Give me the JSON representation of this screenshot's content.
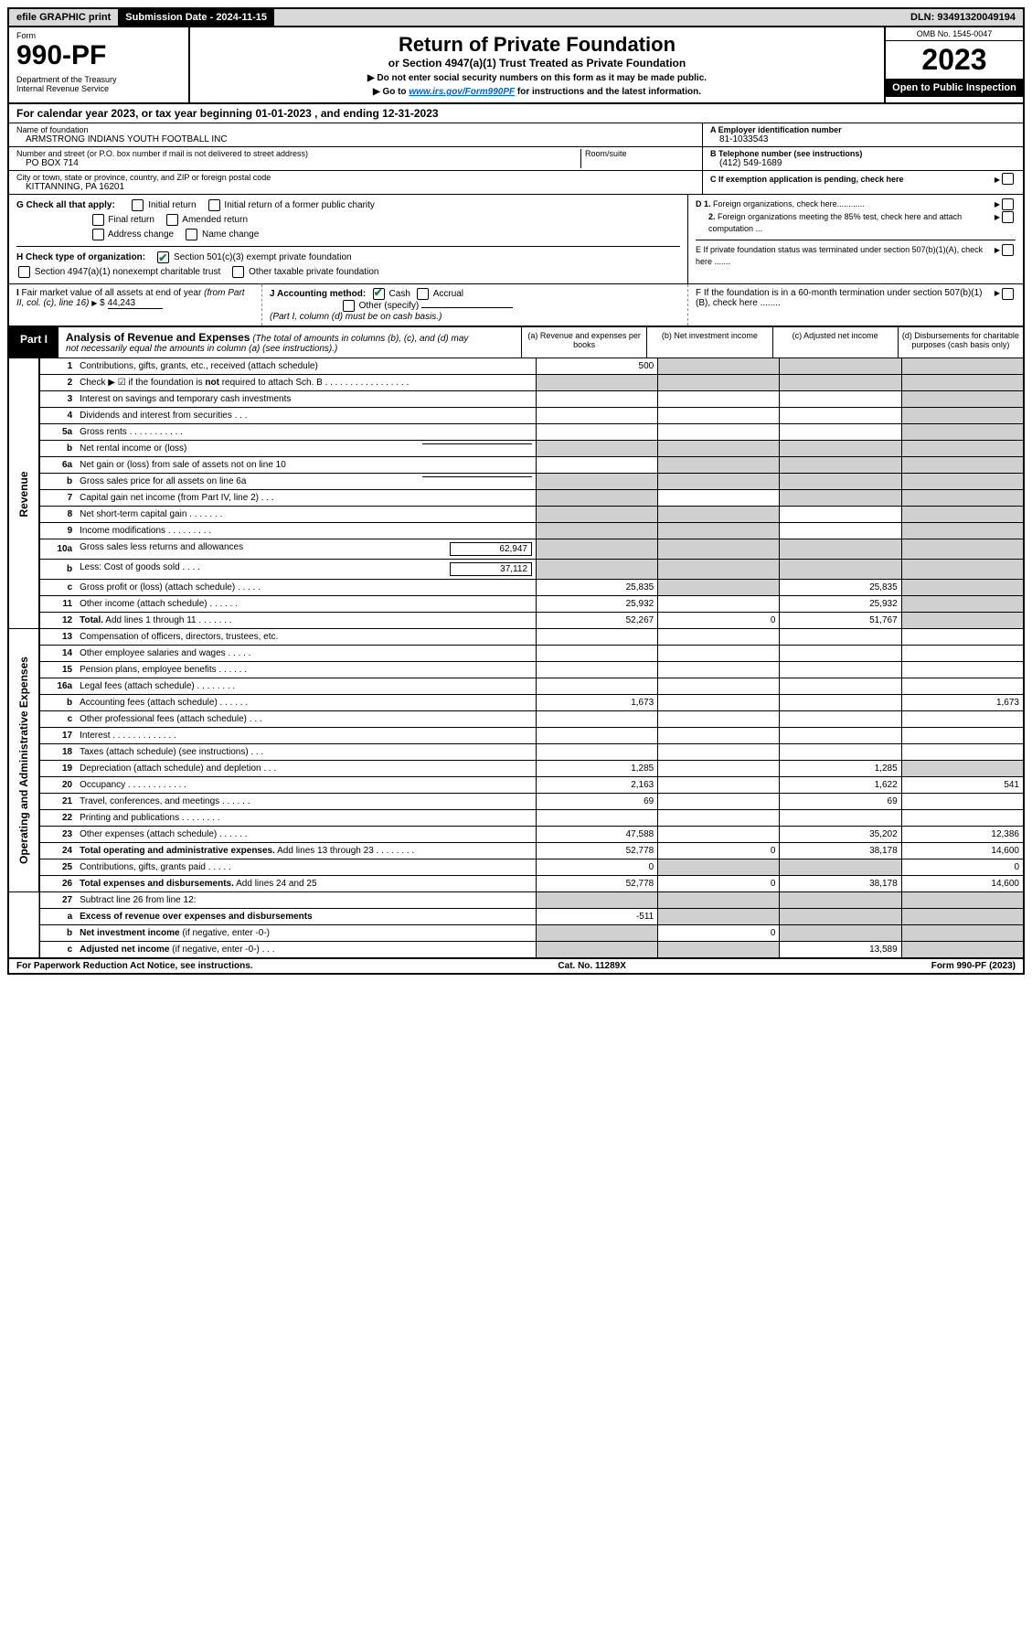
{
  "topbar": {
    "efile": "efile GRAPHIC print",
    "subdate_label": "Submission Date - 2024-11-15",
    "dln": "DLN: 93491320049194"
  },
  "header": {
    "form_word": "Form",
    "form_num": "990-PF",
    "dept": "Department of the Treasury\nInternal Revenue Service",
    "title": "Return of Private Foundation",
    "subtitle": "or Section 4947(a)(1) Trust Treated as Private Foundation",
    "instr1": "▶ Do not enter social security numbers on this form as it may be made public.",
    "instr2_pre": "▶ Go to ",
    "instr2_link": "www.irs.gov/Form990PF",
    "instr2_post": " for instructions and the latest information.",
    "omb": "OMB No. 1545-0047",
    "year": "2023",
    "open": "Open to Public Inspection"
  },
  "calyear": "For calendar year 2023, or tax year beginning 01-01-2023            , and ending 12-31-2023",
  "info": {
    "name_label": "Name of foundation",
    "name": "ARMSTRONG INDIANS YOUTH FOOTBALL INC",
    "addr_label": "Number and street (or P.O. box number if mail is not delivered to street address)",
    "addr": "PO BOX 714",
    "room_label": "Room/suite",
    "city_label": "City or town, state or province, country, and ZIP or foreign postal code",
    "city": "KITTANNING, PA  16201",
    "ein_label": "A Employer identification number",
    "ein": "81-1033543",
    "phone_label": "B Telephone number (see instructions)",
    "phone": "(412) 549-1689",
    "c_label": "C If exemption application is pending, check here"
  },
  "checks": {
    "g_label": "G Check all that apply:",
    "g_opts": [
      "Initial return",
      "Initial return of a former public charity",
      "Final return",
      "Amended return",
      "Address change",
      "Name change"
    ],
    "h_label": "H Check type of organization:",
    "h1": "Section 501(c)(3) exempt private foundation",
    "h2": "Section 4947(a)(1) nonexempt charitable trust",
    "h3": "Other taxable private foundation",
    "d1": "D 1. Foreign organizations, check here............",
    "d2": "2. Foreign organizations meeting the 85% test, check here and attach computation ...",
    "e": "E  If private foundation status was terminated under section 507(b)(1)(A), check here .......",
    "i_label": "I Fair market value of all assets at end of year (from Part II, col. (c), line 16) ▶ $",
    "i_val": "44,243",
    "j_label": "J Accounting method:",
    "j_cash": "Cash",
    "j_accrual": "Accrual",
    "j_other": "Other (specify)",
    "j_note": "(Part I, column (d) must be on cash basis.)",
    "f": "F  If the foundation is in a 60-month termination under section 507(b)(1)(B), check here ........"
  },
  "part1": {
    "tag": "Part I",
    "title": "Analysis of Revenue and Expenses",
    "note": "(The total of amounts in columns (b), (c), and (d) may not necessarily equal the amounts in column (a) (see instructions).)",
    "col_a": "(a) Revenue and expenses per books",
    "col_b": "(b) Net investment income",
    "col_c": "(c) Adjusted net income",
    "col_d": "(d) Disbursements for charitable purposes (cash basis only)"
  },
  "side": {
    "rev": "Revenue",
    "exp": "Operating and Administrative Expenses"
  },
  "rows": [
    {
      "n": "1",
      "desc": "Contributions, gifts, grants, etc., received (attach schedule)",
      "a": "500",
      "b": "",
      "c": "",
      "d": "",
      "b_sh": 1,
      "c_sh": 1,
      "d_sh": 1
    },
    {
      "n": "2",
      "desc": "Check ▶ ☑ if the foundation is <b>not</b> required to attach Sch. B   . . . . . . . . . . . . . . . . .",
      "a": "",
      "b": "",
      "c": "",
      "d": "",
      "a_sh": 1,
      "b_sh": 1,
      "c_sh": 1,
      "d_sh": 1,
      "html": 1
    },
    {
      "n": "3",
      "desc": "Interest on savings and temporary cash investments",
      "a": "",
      "b": "",
      "c": "",
      "d": "",
      "d_sh": 1
    },
    {
      "n": "4",
      "desc": "Dividends and interest from securities   .  .  .",
      "a": "",
      "b": "",
      "c": "",
      "d": "",
      "d_sh": 1
    },
    {
      "n": "5a",
      "desc": "Gross rents   .  .  .  .  .  .  .  .  .  .  .",
      "a": "",
      "b": "",
      "c": "",
      "d": "",
      "d_sh": 1
    },
    {
      "n": "b",
      "desc": "Net rental income or (loss)  ",
      "a": "",
      "b": "",
      "c": "",
      "d": "",
      "a_sh": 1,
      "b_sh": 1,
      "c_sh": 1,
      "d_sh": 1,
      "sub": 1
    },
    {
      "n": "6a",
      "desc": "Net gain or (loss) from sale of assets not on line 10",
      "a": "",
      "b": "",
      "c": "",
      "d": "",
      "b_sh": 1,
      "c_sh": 1,
      "d_sh": 1
    },
    {
      "n": "b",
      "desc": "Gross sales price for all assets on line 6a",
      "a": "",
      "b": "",
      "c": "",
      "d": "",
      "a_sh": 1,
      "b_sh": 1,
      "c_sh": 1,
      "d_sh": 1,
      "sub": 1
    },
    {
      "n": "7",
      "desc": "Capital gain net income (from Part IV, line 2)   .  .  .",
      "a": "",
      "b": "",
      "c": "",
      "d": "",
      "a_sh": 1,
      "c_sh": 1,
      "d_sh": 1
    },
    {
      "n": "8",
      "desc": "Net short-term capital gain  .  .  .  .  .  .  .",
      "a": "",
      "b": "",
      "c": "",
      "d": "",
      "a_sh": 1,
      "b_sh": 1,
      "d_sh": 1
    },
    {
      "n": "9",
      "desc": "Income modifications  .  .  .  .  .  .  .  .  .",
      "a": "",
      "b": "",
      "c": "",
      "d": "",
      "a_sh": 1,
      "b_sh": 1,
      "d_sh": 1
    },
    {
      "n": "10a",
      "desc": "Gross sales less returns and allowances",
      "a": "",
      "b": "",
      "c": "",
      "d": "",
      "a_sh": 1,
      "b_sh": 1,
      "c_sh": 1,
      "d_sh": 1,
      "subval": "62,947"
    },
    {
      "n": "b",
      "desc": "Less: Cost of goods sold    .  .  .  .",
      "a": "",
      "b": "",
      "c": "",
      "d": "",
      "a_sh": 1,
      "b_sh": 1,
      "c_sh": 1,
      "d_sh": 1,
      "subval": "37,112"
    },
    {
      "n": "c",
      "desc": "Gross profit or (loss) (attach schedule)   .  .  .  .  .",
      "a": "25,835",
      "b": "",
      "c": "25,835",
      "d": "",
      "b_sh": 1,
      "d_sh": 1
    },
    {
      "n": "11",
      "desc": "Other income (attach schedule)   .  .  .  .  .  .",
      "a": "25,932",
      "b": "",
      "c": "25,932",
      "d": "",
      "d_sh": 1
    },
    {
      "n": "12",
      "desc": "<b>Total.</b> Add lines 1 through 11   .  .  .  .  .  .  .",
      "a": "52,267",
      "b": "0",
      "c": "51,767",
      "d": "",
      "d_sh": 1,
      "bold": 1,
      "html": 1
    },
    {
      "n": "13",
      "desc": "Compensation of officers, directors, trustees, etc.",
      "a": "",
      "b": "",
      "c": "",
      "d": "",
      "sec": "exp"
    },
    {
      "n": "14",
      "desc": "Other employee salaries and wages   .  .  .  .  .",
      "a": "",
      "b": "",
      "c": "",
      "d": ""
    },
    {
      "n": "15",
      "desc": "Pension plans, employee benefits  .  .  .  .  .  .",
      "a": "",
      "b": "",
      "c": "",
      "d": ""
    },
    {
      "n": "16a",
      "desc": "Legal fees (attach schedule)  .  .  .  .  .  .  .  .",
      "a": "",
      "b": "",
      "c": "",
      "d": ""
    },
    {
      "n": "b",
      "desc": "Accounting fees (attach schedule)  .  .  .  .  .  .",
      "a": "1,673",
      "b": "",
      "c": "",
      "d": "1,673"
    },
    {
      "n": "c",
      "desc": "Other professional fees (attach schedule)   .  .  .",
      "a": "",
      "b": "",
      "c": "",
      "d": ""
    },
    {
      "n": "17",
      "desc": "Interest  .  .  .  .  .  .  .  .  .  .  .  .  .",
      "a": "",
      "b": "",
      "c": "",
      "d": ""
    },
    {
      "n": "18",
      "desc": "Taxes (attach schedule) (see instructions)    .  .  .",
      "a": "",
      "b": "",
      "c": "",
      "d": ""
    },
    {
      "n": "19",
      "desc": "Depreciation (attach schedule) and depletion   .  .  .",
      "a": "1,285",
      "b": "",
      "c": "1,285",
      "d": "",
      "d_sh": 1
    },
    {
      "n": "20",
      "desc": "Occupancy  .  .  .  .  .  .  .  .  .  .  .  .",
      "a": "2,163",
      "b": "",
      "c": "1,622",
      "d": "541"
    },
    {
      "n": "21",
      "desc": "Travel, conferences, and meetings  .  .  .  .  .  .",
      "a": "69",
      "b": "",
      "c": "69",
      "d": ""
    },
    {
      "n": "22",
      "desc": "Printing and publications  .  .  .  .  .  .  .  .",
      "a": "",
      "b": "",
      "c": "",
      "d": ""
    },
    {
      "n": "23",
      "desc": "Other expenses (attach schedule)  .  .  .  .  .  .",
      "a": "47,588",
      "b": "",
      "c": "35,202",
      "d": "12,386"
    },
    {
      "n": "24",
      "desc": "<b>Total operating and administrative expenses.</b> Add lines 13 through 23   .  .  .  .  .  .  .  .",
      "a": "52,778",
      "b": "0",
      "c": "38,178",
      "d": "14,600",
      "bold": 1,
      "html": 1
    },
    {
      "n": "25",
      "desc": "Contributions, gifts, grants paid    .  .  .  .  .",
      "a": "0",
      "b": "",
      "c": "",
      "d": "0",
      "b_sh": 1,
      "c_sh": 1
    },
    {
      "n": "26",
      "desc": "<b>Total expenses and disbursements.</b> Add lines 24 and 25",
      "a": "52,778",
      "b": "0",
      "c": "38,178",
      "d": "14,600",
      "bold": 1,
      "html": 1
    },
    {
      "n": "27",
      "desc": "Subtract line 26 from line 12:",
      "a": "",
      "b": "",
      "c": "",
      "d": "",
      "a_sh": 1,
      "b_sh": 1,
      "c_sh": 1,
      "d_sh": 1,
      "sec": "none"
    },
    {
      "n": "a",
      "desc": "<b>Excess of revenue over expenses and disbursements</b>",
      "a": "-511",
      "b": "",
      "c": "",
      "d": "",
      "b_sh": 1,
      "c_sh": 1,
      "d_sh": 1,
      "html": 1
    },
    {
      "n": "b",
      "desc": "<b>Net investment income</b> (if negative, enter -0-)",
      "a": "",
      "b": "0",
      "c": "",
      "d": "",
      "a_sh": 1,
      "c_sh": 1,
      "d_sh": 1,
      "html": 1
    },
    {
      "n": "c",
      "desc": "<b>Adjusted net income</b> (if negative, enter -0-)   .  .  .",
      "a": "",
      "b": "",
      "c": "13,589",
      "d": "",
      "a_sh": 1,
      "b_sh": 1,
      "d_sh": 1,
      "html": 1
    }
  ],
  "footer": {
    "left": "For Paperwork Reduction Act Notice, see instructions.",
    "mid": "Cat. No. 11289X",
    "right": "Form 990-PF (2023)"
  }
}
